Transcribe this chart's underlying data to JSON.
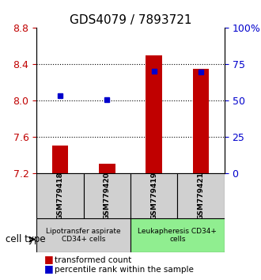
{
  "title": "GDS4079 / 7893721",
  "samples": [
    "GSM779418",
    "GSM779420",
    "GSM779419",
    "GSM779421"
  ],
  "red_bar_values": [
    7.505,
    7.305,
    8.495,
    8.355
  ],
  "blue_square_values": [
    8.055,
    8.01,
    8.325,
    8.315
  ],
  "ylim_left": [
    7.2,
    8.8
  ],
  "ylim_right": [
    0,
    100
  ],
  "yticks_left": [
    7.2,
    7.6,
    8.0,
    8.4,
    8.8
  ],
  "yticks_right": [
    0,
    25,
    50,
    75,
    100
  ],
  "ytick_labels_right": [
    "0",
    "25",
    "50",
    "75",
    "100%"
  ],
  "bar_bottom": 7.2,
  "bar_color": "#c00000",
  "square_color": "#0000cc",
  "group1_label": "Lipotransfer aspirate\nCD34+ cells",
  "group2_label": "Leukapheresis CD34+\ncells",
  "cell_type_label": "cell type",
  "legend_red": "transformed count",
  "legend_blue": "percentile rank within the sample",
  "group1_color": "#d0d0d0",
  "group2_color": "#90ee90",
  "title_fontsize": 11,
  "tick_fontsize": 9,
  "label_fontsize": 8
}
